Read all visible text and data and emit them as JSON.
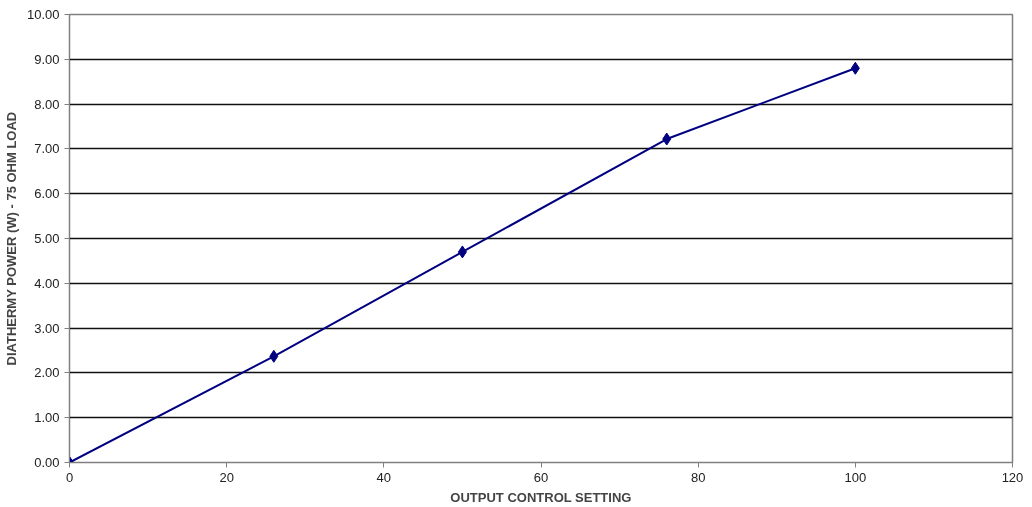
{
  "chart_data": {
    "type": "line",
    "xlabel": "OUTPUT CONTROL SETTING",
    "ylabel": "DIATHERMY POWER (W) - 75 OHM LOAD",
    "x": [
      0,
      26,
      50,
      76,
      100
    ],
    "series": [
      {
        "color": "#000080",
        "values": [
          0,
          2.37,
          4.7,
          7.22,
          8.8
        ]
      }
    ],
    "xlim": [
      0,
      120
    ],
    "xticks": [
      0,
      20,
      40,
      60,
      80,
      100,
      120
    ],
    "ylim": [
      0,
      10
    ],
    "yticks": [
      {
        "value": 0,
        "label": "0.00"
      },
      {
        "value": 1,
        "label": "1.00"
      },
      {
        "value": 2,
        "label": "2.00"
      },
      {
        "value": 3,
        "label": "3.00"
      },
      {
        "value": 4,
        "label": "4.00"
      },
      {
        "value": 5,
        "label": "5.00"
      },
      {
        "value": 6,
        "label": "6.00"
      },
      {
        "value": 7,
        "label": "7.00"
      },
      {
        "value": 8,
        "label": "8.00"
      },
      {
        "value": 9,
        "label": "9.00"
      },
      {
        "value": 10,
        "label": "10.00"
      }
    ],
    "grid": "y",
    "marker": "diamond",
    "line_style": "solid"
  }
}
